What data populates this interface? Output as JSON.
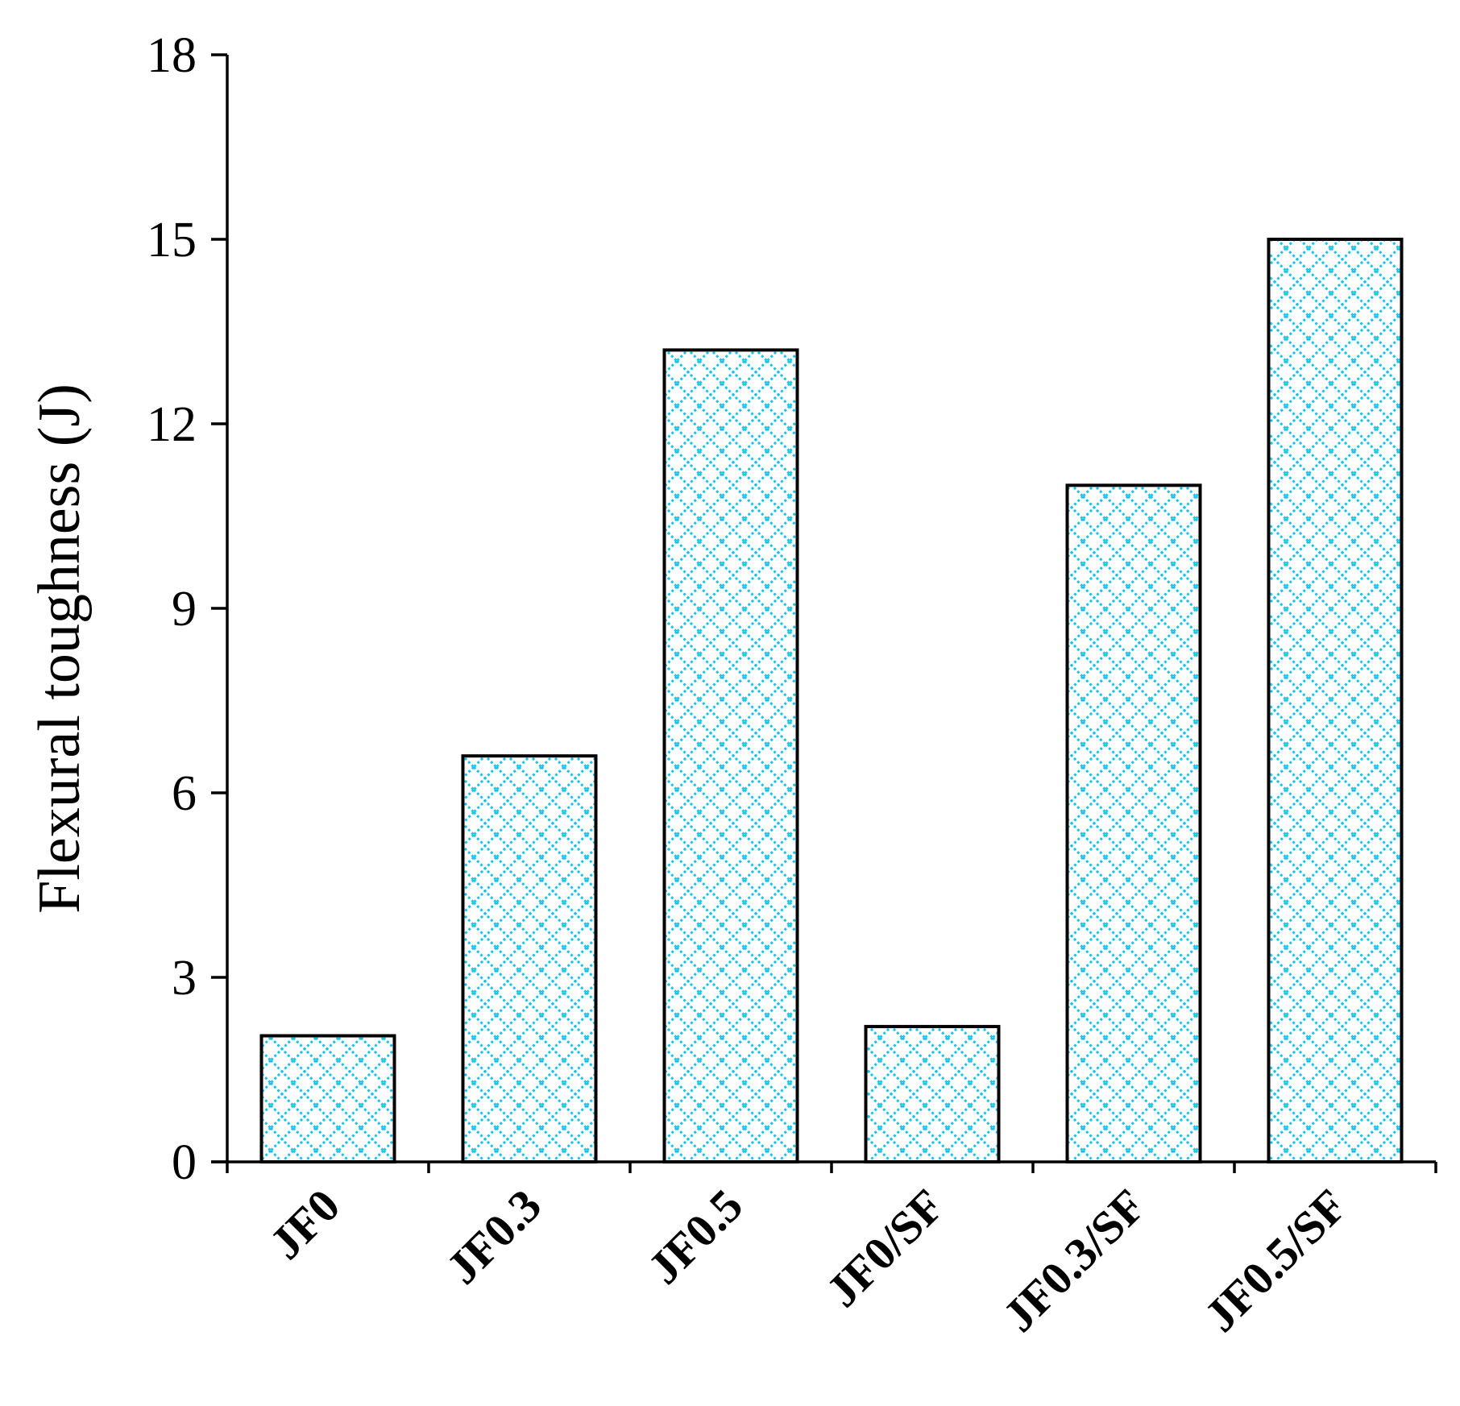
{
  "chart_data": {
    "type": "bar",
    "title": "",
    "xlabel": "",
    "ylabel": "Flexural toughness (J)",
    "categories": [
      "JF0",
      "JF0.3",
      "JF0.5",
      "JF0/SF",
      "JF0.3/SF",
      "JF0.5/SF"
    ],
    "values": [
      2.05,
      6.6,
      13.2,
      2.2,
      11.0,
      15.0
    ],
    "ylim": [
      0,
      18
    ],
    "yticks": [
      0,
      3,
      6,
      9,
      12,
      15,
      18
    ],
    "grid": false,
    "legend": "none",
    "bar_fill_pattern": "crosshatch",
    "colors": {
      "pattern": "#18c4ea",
      "outline": "#000000",
      "background": "#ffffff"
    }
  }
}
